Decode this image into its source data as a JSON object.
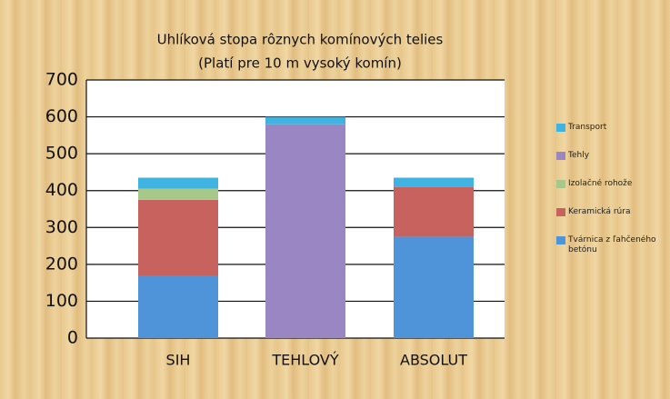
{
  "chart_data": {
    "type": "stacked_bar",
    "title": "Uhlíková stopa rôznych komínových telies",
    "subtitle": "(Platí pre 10 m vysoký komín)",
    "categories": [
      "SIH",
      "TEHLOVÝ",
      "ABSOLUT"
    ],
    "series": [
      {
        "name": "Tvárnica z ľahčeného betónu",
        "color": "#4f94d8",
        "values": [
          170,
          0,
          275
        ]
      },
      {
        "name": "Keramická rúra",
        "color": "#c8625e",
        "values": [
          205,
          0,
          135
        ]
      },
      {
        "name": "Izolačné rohože",
        "color": "#a6c98a",
        "values": [
          30,
          0,
          0
        ]
      },
      {
        "name": "Tehly",
        "color": "#9a86c2",
        "values": [
          0,
          580,
          0
        ]
      },
      {
        "name": "Transport",
        "color": "#3fb4e2",
        "values": [
          30,
          20,
          25
        ]
      }
    ],
    "ylim": [
      0,
      700
    ],
    "yticks": [
      0,
      100,
      200,
      300,
      400,
      500,
      600,
      700
    ],
    "grid": true,
    "legend": "right"
  }
}
